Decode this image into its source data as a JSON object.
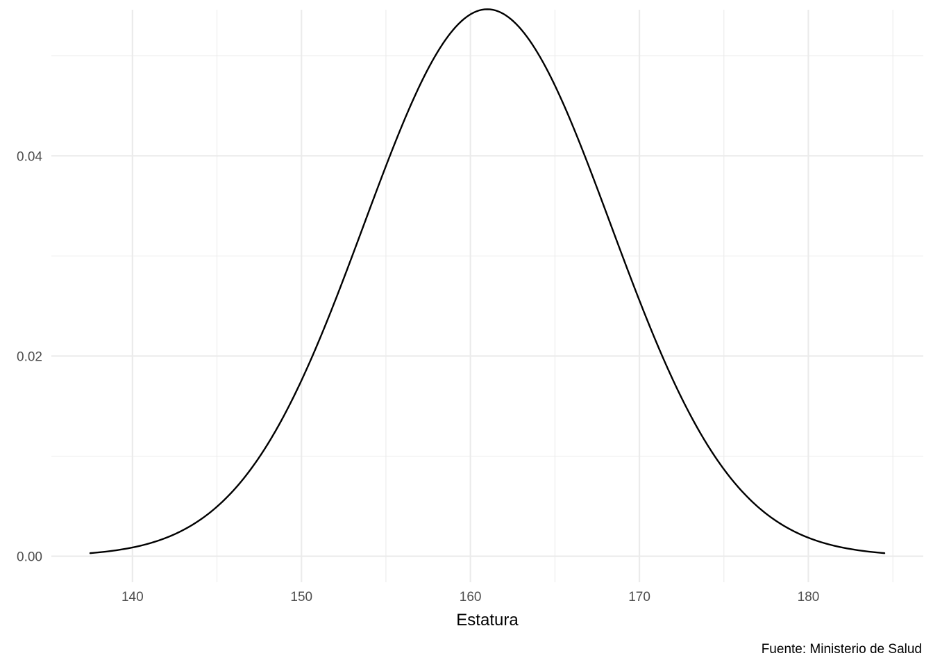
{
  "chart_data": {
    "type": "line",
    "title": "",
    "xlabel": "Estatura",
    "ylabel": "",
    "caption": "Fuente: Ministerio de Salud",
    "xlim": [
      135.2,
      186.8
    ],
    "ylim": [
      -0.0026,
      0.0546
    ],
    "x_ticks": [
      140,
      150,
      160,
      170,
      180
    ],
    "x_tick_labels": [
      "140",
      "150",
      "160",
      "170",
      "180"
    ],
    "x_minor_ticks": [
      145,
      155,
      165,
      175,
      185
    ],
    "y_ticks": [
      0.0,
      0.02,
      0.04
    ],
    "y_tick_labels": [
      "0.00",
      "0.02",
      "0.04"
    ],
    "y_minor_ticks": [
      0.01,
      0.03,
      0.05
    ],
    "grid": true,
    "series": [
      {
        "color": "#000000",
        "distribution": {
          "mean": 161,
          "sd": 7.3
        },
        "x_range": [
          137.5,
          184.5
        ]
      }
    ]
  }
}
